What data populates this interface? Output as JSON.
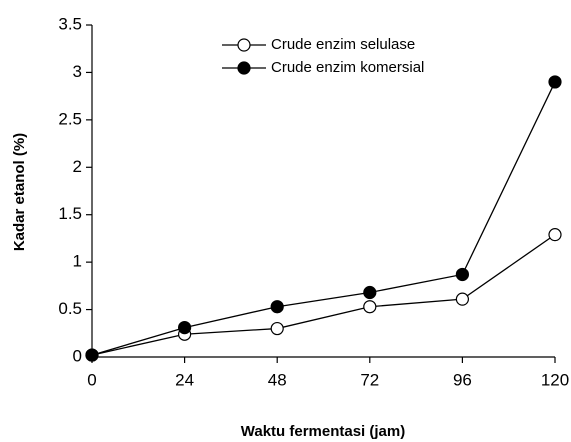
{
  "chart_data": {
    "type": "line",
    "x_label": "Waktu fermentasi (jam)",
    "y_label": "Kadar etanol (%)",
    "x": [
      0,
      24,
      48,
      72,
      96,
      120
    ],
    "series": [
      {
        "name": "Crude enzim selulase",
        "color": "#000000",
        "marker_fill": "#ffffff",
        "values": [
          0.02,
          0.24,
          0.3,
          0.53,
          0.61,
          1.29
        ]
      },
      {
        "name": "Crude enzim komersial",
        "color": "#000000",
        "marker_fill": "#000000",
        "values": [
          0.02,
          0.31,
          0.53,
          0.68,
          0.87,
          2.9
        ]
      }
    ],
    "xlim": [
      0,
      120
    ],
    "xticks": [
      0,
      24,
      48,
      72,
      96,
      120
    ],
    "ylim": [
      0,
      3.5
    ],
    "yticks": [
      0,
      0.5,
      1,
      1.5,
      2,
      2.5,
      3,
      3.5
    ],
    "grid": false,
    "legend": "top"
  }
}
